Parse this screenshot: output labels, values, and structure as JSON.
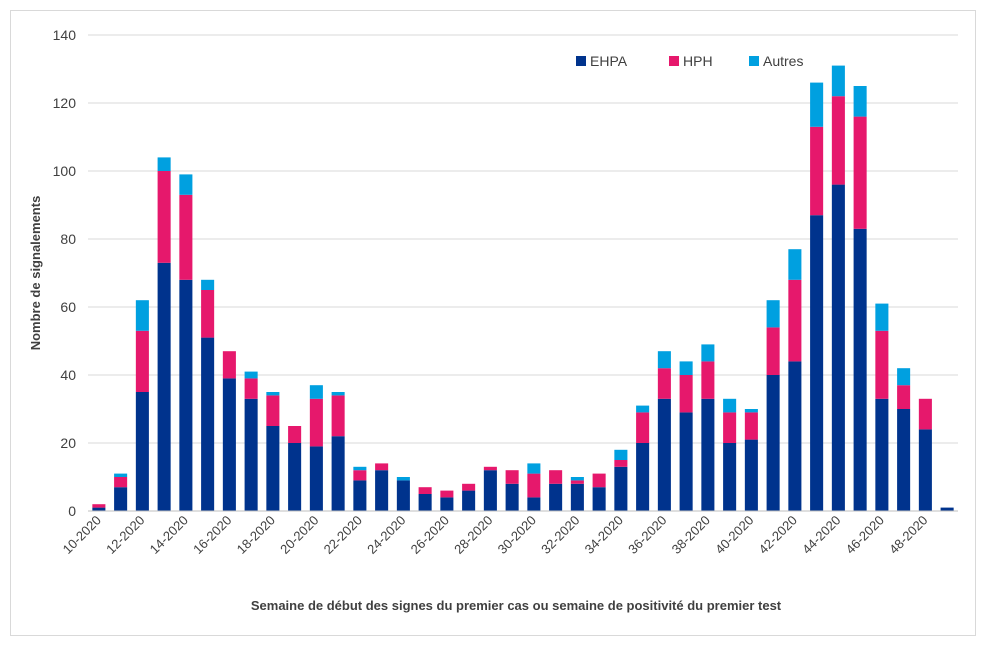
{
  "chart_data": {
    "type": "bar",
    "stacked": true,
    "title": "",
    "xlabel": "Semaine de début des signes du premier cas ou semaine de positivité du premier test",
    "ylabel": "Nombre de signalements",
    "ylim": [
      0,
      140
    ],
    "yticks": [
      0,
      20,
      40,
      60,
      80,
      100,
      120,
      140
    ],
    "grid": true,
    "legend_position": "top-right",
    "categories": [
      "10-2020",
      "11-2020",
      "12-2020",
      "13-2020",
      "14-2020",
      "15-2020",
      "16-2020",
      "17-2020",
      "18-2020",
      "19-2020",
      "20-2020",
      "21-2020",
      "22-2020",
      "23-2020",
      "24-2020",
      "25-2020",
      "26-2020",
      "27-2020",
      "28-2020",
      "29-2020",
      "30-2020",
      "31-2020",
      "32-2020",
      "33-2020",
      "34-2020",
      "35-2020",
      "36-2020",
      "37-2020",
      "38-2020",
      "39-2020",
      "40-2020",
      "41-2020",
      "42-2020",
      "43-2020",
      "44-2020",
      "45-2020",
      "46-2020",
      "47-2020",
      "48-2020",
      "49-2020"
    ],
    "tick_labels": [
      "10-2020",
      "",
      "12-2020",
      "",
      "14-2020",
      "",
      "16-2020",
      "",
      "18-2020",
      "",
      "20-2020",
      "",
      "22-2020",
      "",
      "24-2020",
      "",
      "26-2020",
      "",
      "28-2020",
      "",
      "30-2020",
      "",
      "32-2020",
      "",
      "34-2020",
      "",
      "36-2020",
      "",
      "38-2020",
      "",
      "40-2020",
      "",
      "42-2020",
      "",
      "44-2020",
      "",
      "46-2020",
      "",
      "48-2020",
      ""
    ],
    "series": [
      {
        "name": "EHPA",
        "color": "#00338d",
        "values": [
          1,
          7,
          35,
          73,
          68,
          51,
          39,
          33,
          25,
          20,
          19,
          22,
          9,
          12,
          9,
          5,
          4,
          6,
          12,
          8,
          4,
          8,
          8,
          7,
          13,
          20,
          33,
          29,
          33,
          20,
          21,
          40,
          44,
          87,
          96,
          83,
          33,
          30,
          24,
          1
        ]
      },
      {
        "name": "HPH",
        "color": "#e6186c",
        "values": [
          1,
          3,
          18,
          27,
          25,
          14,
          8,
          6,
          9,
          5,
          14,
          12,
          3,
          2,
          0,
          2,
          2,
          2,
          1,
          4,
          7,
          4,
          1,
          4,
          2,
          9,
          9,
          11,
          11,
          9,
          8,
          14,
          24,
          26,
          26,
          33,
          20,
          7,
          9,
          0
        ]
      },
      {
        "name": "Autres",
        "color": "#00a0e0",
        "values": [
          0,
          1,
          9,
          4,
          6,
          3,
          0,
          2,
          1,
          0,
          4,
          1,
          1,
          0,
          1,
          0,
          0,
          0,
          0,
          0,
          3,
          0,
          1,
          0,
          3,
          2,
          5,
          4,
          5,
          4,
          1,
          8,
          9,
          13,
          9,
          9,
          8,
          5,
          0,
          0
        ]
      }
    ]
  }
}
